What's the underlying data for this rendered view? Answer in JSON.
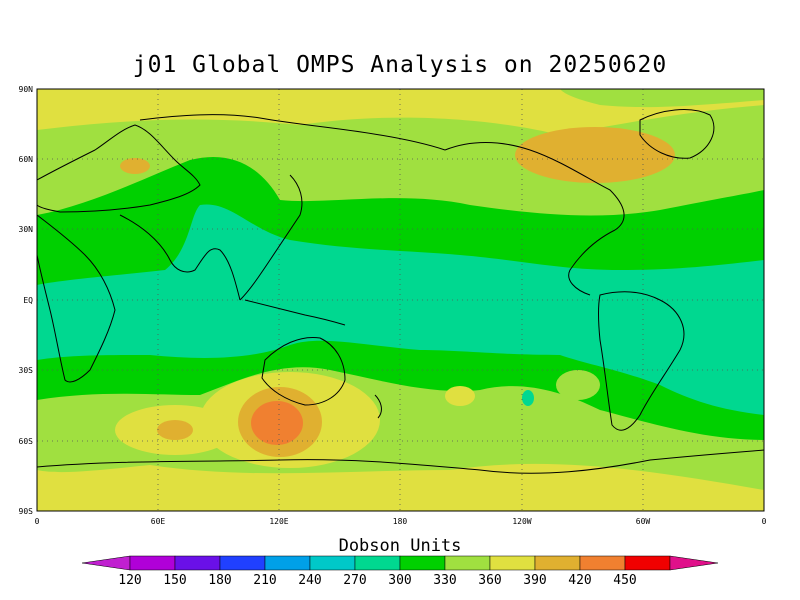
{
  "title": "j01 Global OMPS Analysis on 20250620",
  "units_label": "Dobson Units",
  "axes": {
    "lat_ticks": [
      "90N",
      "60N",
      "30N",
      "EQ",
      "30S",
      "60S",
      "90S"
    ],
    "lon_ticks": [
      "0",
      "60E",
      "120E",
      "180",
      "120W",
      "60W",
      "0"
    ]
  },
  "colorbar": {
    "labels": [
      "120",
      "150",
      "180",
      "210",
      "240",
      "270",
      "300",
      "330",
      "360",
      "390",
      "420",
      "450"
    ],
    "colors": [
      "#b000d8",
      "#6a10e8",
      "#2040ff",
      "#00a0e8",
      "#00c8c8",
      "#00d890",
      "#00d000",
      "#a0e040",
      "#e0e040",
      "#e0b030",
      "#f08030",
      "#f00000"
    ],
    "under_color": "#c020d0",
    "over_color": "#e0108a"
  },
  "map": {
    "field": "total column ozone",
    "grid": true,
    "land_outline_color": "#000000"
  }
}
